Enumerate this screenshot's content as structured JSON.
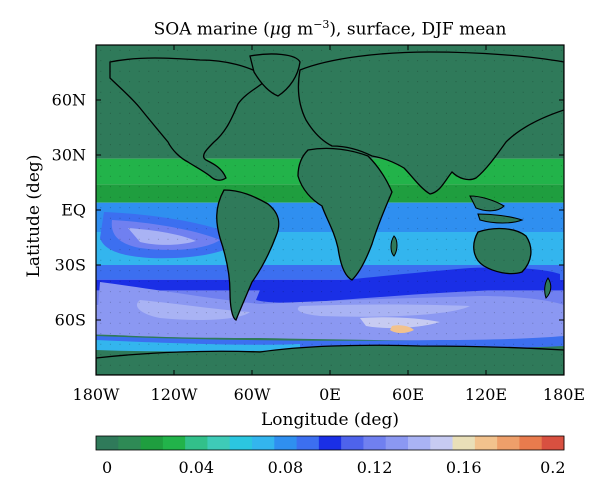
{
  "chart_data": {
    "type": "heatmap",
    "title": {
      "prefix": "SOA marine (",
      "mu": "μ",
      "unit": "g m",
      "exponent": "−3",
      "suffix": "), surface, DJF mean"
    },
    "xlabel": "Longitude (deg)",
    "ylabel": "Latitude (deg)",
    "xlim": [
      -180,
      180
    ],
    "ylim": [
      -90,
      90
    ],
    "x_ticks": [
      {
        "value": -180,
        "label": "180W"
      },
      {
        "value": -120,
        "label": "120W"
      },
      {
        "value": -60,
        "label": "60W"
      },
      {
        "value": 0,
        "label": "0E"
      },
      {
        "value": 60,
        "label": "60E"
      },
      {
        "value": 120,
        "label": "120E"
      },
      {
        "value": 180,
        "label": "180E"
      }
    ],
    "y_ticks": [
      {
        "value": 60,
        "label": "60N"
      },
      {
        "value": 30,
        "label": "30N"
      },
      {
        "value": 0,
        "label": "EQ"
      },
      {
        "value": -30,
        "label": "30S"
      },
      {
        "value": -60,
        "label": "60S"
      }
    ],
    "colorbar": {
      "min": 0,
      "max": 0.2,
      "step": 0.01,
      "ticks": [
        {
          "value": 0,
          "label": "0"
        },
        {
          "value": 0.04,
          "label": "0.04"
        },
        {
          "value": 0.08,
          "label": "0.08"
        },
        {
          "value": 0.12,
          "label": "0.12"
        },
        {
          "value": 0.16,
          "label": "0.16"
        },
        {
          "value": 0.2,
          "label": "0.2"
        }
      ],
      "colors": [
        "#2f7a5a",
        "#2e8a55",
        "#1f9e3f",
        "#22b34a",
        "#32c08a",
        "#3ecbb7",
        "#2bc6e0",
        "#33b5ee",
        "#2f8ff0",
        "#3c6ff0",
        "#1a2fe6",
        "#4e63ec",
        "#7080f0",
        "#8b98f2",
        "#a9b3f4",
        "#c7cbf2",
        "#e9dfb8",
        "#f2c28d",
        "#ee9f6a",
        "#e87b4d",
        "#d85040"
      ]
    },
    "field_bands": [
      {
        "lat_range": [
          60,
          90
        ],
        "value": 0.005
      },
      {
        "lat_range": [
          28,
          60
        ],
        "value": 0.005
      },
      {
        "lat_range": [
          14,
          28
        ],
        "value": 0.035
      },
      {
        "lat_range": [
          4,
          14
        ],
        "value": 0.025
      },
      {
        "lat_range": [
          -12,
          4
        ],
        "value": 0.085
      },
      {
        "lat_range": [
          -30,
          -12
        ],
        "value": 0.07
      },
      {
        "lat_range": [
          -38,
          -30
        ],
        "value": 0.09
      },
      {
        "lat_range": [
          -44,
          -38
        ],
        "value": 0.105
      },
      {
        "lat_range": [
          -52,
          -44
        ],
        "value": 0.12
      },
      {
        "lat_range": [
          -58,
          -52
        ],
        "value": 0.135
      },
      {
        "lat_range": [
          -64,
          -58
        ],
        "value": 0.13
      },
      {
        "lat_range": [
          -68,
          -64
        ],
        "value": 0.11
      },
      {
        "lat_range": [
          -90,
          -68
        ],
        "value": 0.005
      }
    ]
  }
}
